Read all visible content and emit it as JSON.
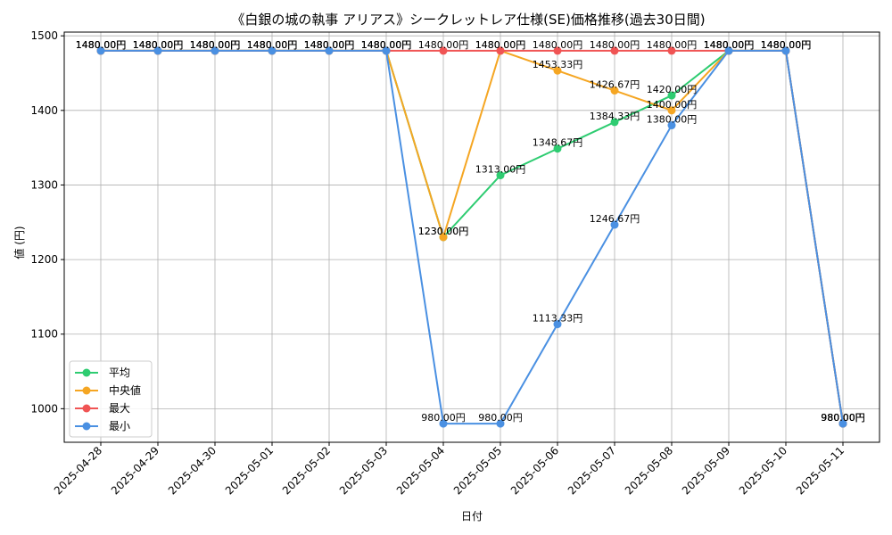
{
  "chart_data": {
    "type": "line",
    "title": "《白銀の城の執事 アリアス》シークレットレア仕様(SE)価格推移(過去30日間)",
    "xlabel": "日付",
    "ylabel": "値 (円)",
    "ylim": [
      955,
      1505
    ],
    "yticks": [
      1000,
      1100,
      1200,
      1300,
      1400,
      1500
    ],
    "ytick_labels": [
      "1000",
      "1100",
      "1200",
      "1300",
      "1400",
      "1500"
    ],
    "grid": true,
    "legend_position": "lower-left",
    "categories": [
      "2025-04-28",
      "2025-04-29",
      "2025-04-30",
      "2025-05-01",
      "2025-05-02",
      "2025-05-03",
      "2025-05-04",
      "2025-05-05",
      "2025-05-06",
      "2025-05-07",
      "2025-05-08",
      "2025-05-09",
      "2025-05-10",
      "2025-05-11"
    ],
    "series": [
      {
        "name": "平均",
        "color": "#2ecc71",
        "values": [
          1480,
          1480,
          1480,
          1480,
          1480,
          1480,
          1230,
          1313,
          1348.67,
          1384.33,
          1420,
          1480,
          1480,
          980
        ],
        "labels": [
          "1480.00円",
          "1480.00円",
          "1480.00円",
          "1480.00円",
          "1480.00円",
          "1480.00円",
          "1230.00円",
          "1313.00円",
          "1348.67円",
          "1384.33円",
          "1420.00円",
          "1480.00円",
          "1480.00円",
          "980.00円"
        ]
      },
      {
        "name": "中央値",
        "color": "#f5a623",
        "values": [
          1480,
          1480,
          1480,
          1480,
          1480,
          1480,
          1230,
          1480,
          1453.33,
          1426.67,
          1400,
          1480,
          1480,
          980
        ],
        "labels": [
          "1480.00円",
          "1480.00円",
          "1480.00円",
          "1480.00円",
          "1480.00円",
          "1480.00円",
          "1230.00円",
          "1480.00円",
          "1453.33円",
          "1426.67円",
          "1400.00円",
          "1480.00円",
          "1480.00円",
          "980.00円"
        ]
      },
      {
        "name": "最大",
        "color": "#f05454",
        "values": [
          1480,
          1480,
          1480,
          1480,
          1480,
          1480,
          1480,
          1480,
          1480,
          1480,
          1480,
          1480,
          1480,
          980
        ],
        "labels": [
          "1480.00円",
          "1480.00円",
          "1480.00円",
          "1480.00円",
          "1480.00円",
          "1480.00円",
          "1480.00円",
          "1480.00円",
          "1480.00円",
          "1480.00円",
          "1480.00円",
          "1480.00円",
          "1480.00円",
          "980.00円"
        ]
      },
      {
        "name": "最小",
        "color": "#4a90e2",
        "values": [
          1480,
          1480,
          1480,
          1480,
          1480,
          1480,
          980,
          980,
          1113.33,
          1246.67,
          1380,
          1480,
          1480,
          980
        ],
        "labels": [
          "1480.00円",
          "1480.00円",
          "1480.00円",
          "1480.00円",
          "1480.00円",
          "1480.00円",
          "980.00円",
          "980.00円",
          "1113.33円",
          "1246.67円",
          "1380.00円",
          "1480.00円",
          "1480.00円",
          "980.00円"
        ]
      }
    ]
  }
}
